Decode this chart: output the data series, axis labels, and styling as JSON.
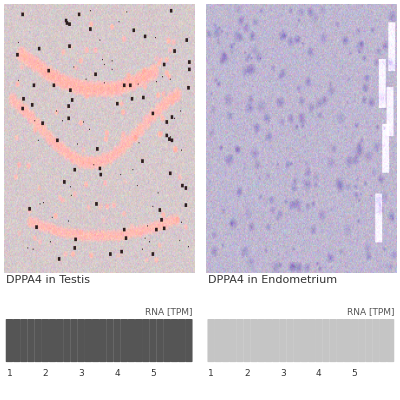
{
  "title_left": "DPPA4 in Testis",
  "title_right": "DPPA4 in Endometrium",
  "rna_label": "RNA [TPM]",
  "tick_labels": [
    "1",
    "2",
    "3",
    "4",
    "5"
  ],
  "n_bars": 26,
  "bar_color_left": "#555555",
  "bar_color_right": "#c5c5c5",
  "bg_color": "#ffffff",
  "text_color": "#333333",
  "title_fontsize": 8.0,
  "rna_fontsize": 6.5,
  "tick_fontsize": 6.5,
  "testis_base_rgb": [
    0.84,
    0.79,
    0.8
  ],
  "testis_noise": 0.04,
  "endo_base_rgb": [
    0.75,
    0.72,
    0.82
  ],
  "endo_noise": 0.04
}
